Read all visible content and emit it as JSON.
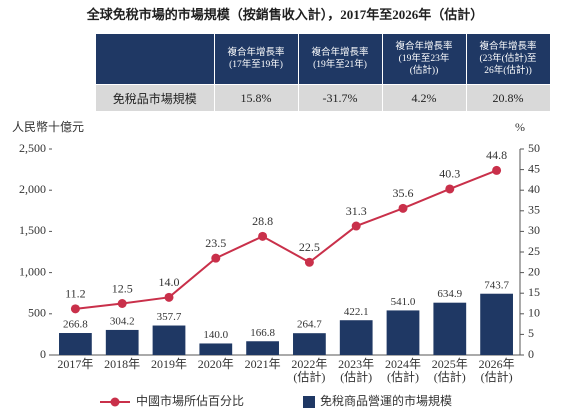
{
  "chart_data": {
    "type": "bar_line",
    "title": "全球免稅市場的市場規模（按銷售收入計），2017年至2026年（估計）",
    "table": {
      "header": [
        "複合年增長率\n(17年至19年)",
        "複合年增長率\n(19年至21年)",
        "複合年增長率\n(19年至23年\n(估計))",
        "複合年增長率\n(23年(估計)至\n26年(估計))"
      ],
      "row_label": "免稅品市場規模",
      "row": [
        "15.8%",
        "-31.7%",
        "4.2%",
        "20.8%"
      ]
    },
    "y_label": "人民幣十億元",
    "y2_label": "%",
    "categories": [
      "2017年",
      "2018年",
      "2019年",
      "2020年",
      "2021年",
      "2022年\n(估計)",
      "2023年\n(估計)",
      "2024年\n(估計)",
      "2025年\n(估計)",
      "2026年\n(估計)"
    ],
    "ylim": [
      0,
      2500
    ],
    "yticks": [
      0,
      500,
      {
        "value": 1000,
        "label": "1,000"
      },
      {
        "value": 1500,
        "label": "1,500"
      },
      {
        "value": 2000,
        "label": "2,000"
      },
      {
        "value": 2500,
        "label": "2,500"
      }
    ],
    "y2lim": [
      0,
      50
    ],
    "y2ticks": [
      0,
      5,
      10,
      15,
      20,
      25,
      30,
      35,
      40,
      45,
      50
    ],
    "series": [
      {
        "name": "免稅商品營運的市場規模",
        "type": "bar",
        "color": "#1f3864",
        "values": [
          266.8,
          304.2,
          357.7,
          140.0,
          166.8,
          264.7,
          422.1,
          541.0,
          634.9,
          743.7
        ],
        "value_labels": [
          "266.8",
          "304.2",
          "357.7",
          "140.0",
          "166.8",
          "264.7",
          "422.1",
          "541.0",
          "634.9",
          "743.7"
        ]
      },
      {
        "name": "中國市場所佔百分比",
        "type": "line",
        "axis": "y2",
        "color": "#c9304a",
        "values": [
          11.2,
          12.5,
          14.0,
          23.5,
          28.8,
          22.5,
          31.3,
          35.6,
          40.3,
          44.8
        ],
        "value_labels": [
          "11.2",
          "12.5",
          "14.0",
          "23.5",
          "28.8",
          "22.5",
          "31.3",
          "35.6",
          "40.3",
          "44.8"
        ]
      }
    ]
  }
}
